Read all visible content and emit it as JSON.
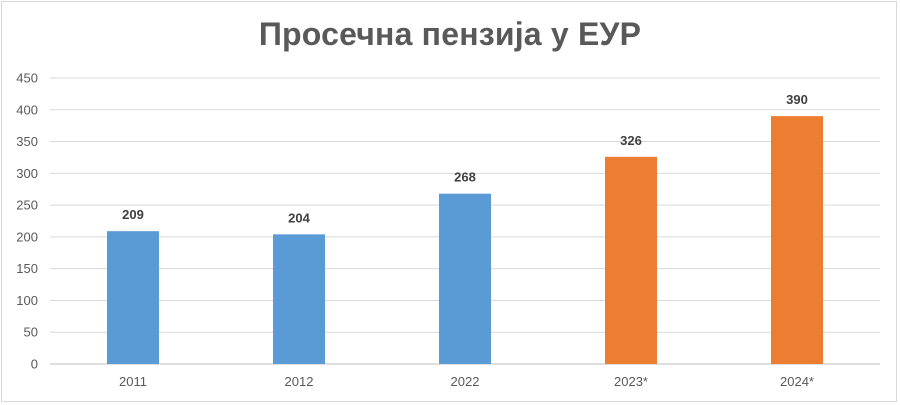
{
  "chart_data": {
    "type": "bar",
    "title": "Просечна пензија у ЕУР",
    "categories": [
      "2011",
      "2012",
      "2022",
      "2023*",
      "2024*"
    ],
    "values": [
      209,
      204,
      268,
      326,
      390
    ],
    "data_labels": [
      "209",
      "204",
      "268",
      "326",
      "390"
    ],
    "colors": [
      "#5b9bd5",
      "#5b9bd5",
      "#5b9bd5",
      "#ed7d31",
      "#ed7d31"
    ],
    "ylim": [
      0,
      450
    ],
    "yticks": [
      0,
      50,
      100,
      150,
      200,
      250,
      300,
      350,
      400,
      450
    ],
    "xlabel": "",
    "ylabel": "",
    "grid": true,
    "legend": "none",
    "gridline_color": "#d9d9d9",
    "axis_text_color": "#595959"
  }
}
